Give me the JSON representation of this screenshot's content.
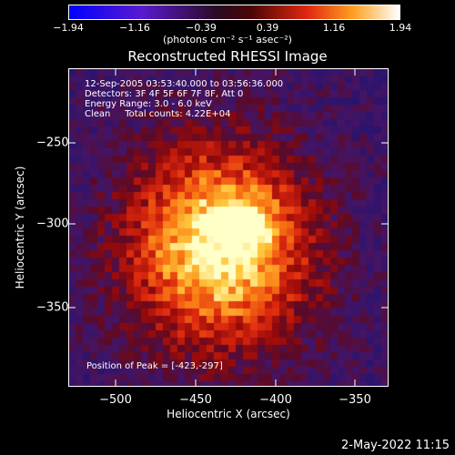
{
  "colorbar": {
    "ticks": [
      "−1.94",
      "−1.16",
      "−0.39",
      "0.39",
      "1.16",
      "1.94"
    ],
    "units": "(photons cm⁻² s⁻¹ asec⁻²)"
  },
  "title": "Reconstructed RHESSI Image",
  "info_lines": [
    "12-Sep-2005 03:53:40.000 to 03:56:36.000",
    "Detectors: 3F 4F 5F 6F 7F 8F, Att 0",
    "Energy Range: 3.0 - 6.0 keV",
    "Clean     Total counts: 4.22E+04"
  ],
  "peak_label": "Position of Peak = [-423,-297]",
  "date_stamp": "2-May-2022 11:15",
  "chart_data": {
    "type": "heatmap",
    "title": "Reconstructed RHESSI Image",
    "xlabel": "Heliocentric X (arcsec)",
    "ylabel": "Heliocentric Y (arcsec)",
    "xlim": [
      -528,
      -327
    ],
    "ylim": [
      -400,
      -200
    ],
    "x_ticks": [
      -500,
      -450,
      -400,
      -350
    ],
    "y_ticks": [
      -250,
      -300,
      -350
    ],
    "x_tick_labels": [
      "−500",
      "−450",
      "−400",
      "−350"
    ],
    "y_tick_labels": [
      "−250",
      "−300",
      "−350"
    ],
    "colorbar_range": [
      -1.94,
      1.94
    ],
    "colormap": "red-temperature",
    "peak": [
      -423,
      -297
    ],
    "colors": {
      "background": "#000000",
      "low": "#2c1a8a",
      "mid": "#c41414",
      "high": "#ffffb0"
    }
  }
}
